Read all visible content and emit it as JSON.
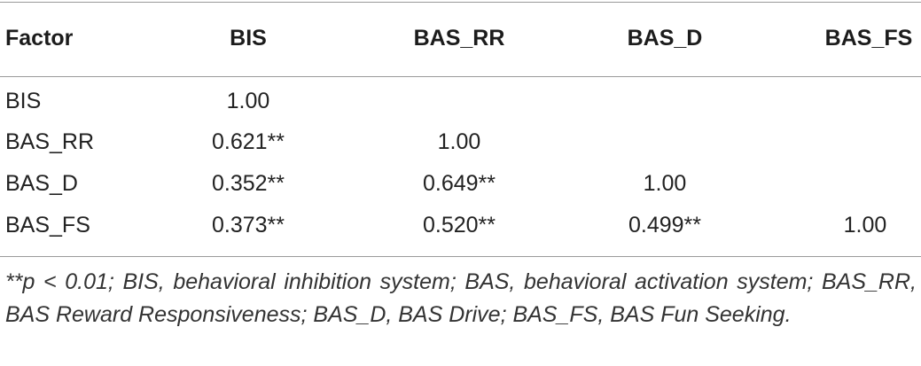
{
  "table": {
    "headers": [
      "Factor",
      "BIS",
      "BAS_RR",
      "BAS_D",
      "BAS_FS"
    ],
    "rows": [
      [
        "BIS",
        "1.00",
        "",
        "",
        ""
      ],
      [
        "BAS_RR",
        "0.621**",
        "1.00",
        "",
        ""
      ],
      [
        "BAS_D",
        "0.352**",
        "0.649**",
        "1.00",
        ""
      ],
      [
        "BAS_FS",
        "0.373**",
        "0.520**",
        "0.499**",
        "1.00"
      ]
    ]
  },
  "footnote": {
    "text": "**p <  0.01; BIS, behavioral inhibition system; BAS, behavioral activation system; BAS_RR, BAS Reward Responsiveness; BAS_D, BAS Drive; BAS_FS, BAS Fun Seeking."
  }
}
